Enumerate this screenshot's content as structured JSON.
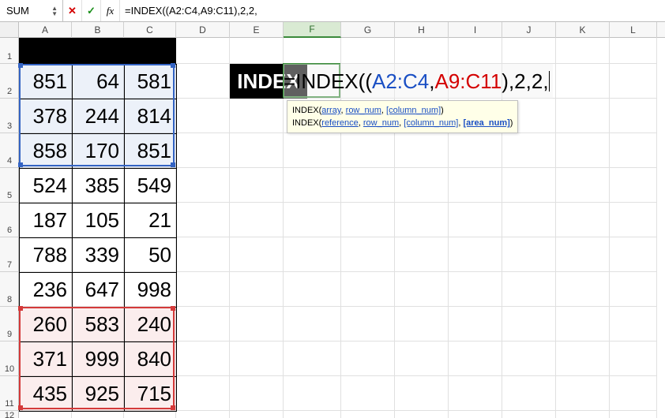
{
  "formulaBar": {
    "nameBoxValue": "SUM",
    "fxLabel": "fx",
    "formulaText": "=INDEX((A2:C4,A9:C11),2,2,"
  },
  "layout": {
    "colWidths": {
      "A": 67,
      "B": 66,
      "C": 66,
      "D": 68,
      "E": 68,
      "F": 73,
      "G": 68,
      "H": 68,
      "I": 68,
      "J": 68,
      "K": 68,
      "L": 60
    },
    "rowHeights": {
      "1": 33,
      "2": 44,
      "3": 44,
      "4": 44,
      "5": 44,
      "6": 44,
      "7": 44,
      "8": 44,
      "9": 44,
      "10": 44,
      "11": 44,
      "12": 15
    },
    "visibleCols": [
      "A",
      "B",
      "C",
      "D",
      "E",
      "F",
      "G",
      "H",
      "I",
      "J",
      "K",
      "L"
    ],
    "visibleRows": [
      1,
      2,
      3,
      4,
      5,
      6,
      7,
      8,
      9,
      10,
      11,
      12
    ],
    "activeCol": "F"
  },
  "blackCell": {
    "range": "A1:C1"
  },
  "dataTable": {
    "cols": [
      "A",
      "B",
      "C"
    ],
    "rows": [
      [
        851,
        64,
        581
      ],
      [
        378,
        244,
        814
      ],
      [
        858,
        170,
        851
      ],
      [
        524,
        385,
        549
      ],
      [
        187,
        105,
        21
      ],
      [
        788,
        339,
        50
      ],
      [
        236,
        647,
        998
      ],
      [
        260,
        583,
        240
      ],
      [
        371,
        999,
        840
      ],
      [
        435,
        925,
        715
      ]
    ]
  },
  "selections": {
    "blue": {
      "range": "A2:C4"
    },
    "red": {
      "range": "A9:C11"
    }
  },
  "overlay": {
    "label": "INDEX",
    "formulaParts": [
      {
        "t": "=INDEX(",
        "c": "k"
      },
      {
        "t": "(",
        "c": "k"
      },
      {
        "t": "A2:C4",
        "c": "b"
      },
      {
        "t": ",",
        "c": "k"
      },
      {
        "t": "A9:C11",
        "c": "r"
      },
      {
        "t": ")",
        "c": "k"
      },
      {
        "t": ",2,2,",
        "c": "k"
      }
    ]
  },
  "tooltip": {
    "line1": {
      "fn": "INDEX",
      "args": [
        "array",
        "row_num",
        "[column_num]"
      ],
      "boldIdx": -1
    },
    "line2": {
      "fn": "INDEX",
      "args": [
        "reference",
        "row_num",
        "[column_num]",
        "[area_num]"
      ],
      "boldIdx": 3
    }
  },
  "colors": {
    "blueRange": "#3464c4",
    "redRange": "#d43a3a",
    "editBorder": "#3a8a3a"
  }
}
